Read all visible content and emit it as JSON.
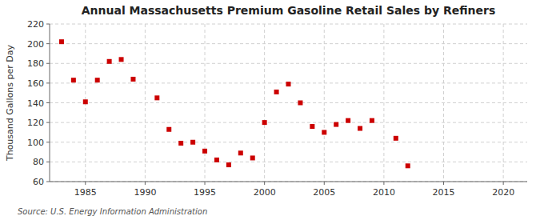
{
  "chart_data": {
    "type": "scatter",
    "title": "Annual Massachusetts Premium Gasoline Retail Sales by Refiners",
    "ylabel": "Thousand Gallons per Day",
    "source": "Source: U.S. Energy Information Administration",
    "x": [
      1983,
      1984,
      1985,
      1986,
      1987,
      1988,
      1989,
      1991,
      1992,
      1993,
      1994,
      1995,
      1996,
      1997,
      1998,
      1999,
      2000,
      2001,
      2002,
      2003,
      2004,
      2005,
      2006,
      2007,
      2008,
      2009,
      2011,
      2012
    ],
    "values": [
      202,
      163,
      141,
      163,
      182,
      184,
      164,
      145,
      113,
      99,
      100,
      91,
      82,
      77,
      89,
      84,
      120,
      151,
      159,
      140,
      116,
      110,
      118,
      122,
      114,
      122,
      104,
      76
    ],
    "color": "#cc0000",
    "marker": "square",
    "xlim": [
      1982,
      2022
    ],
    "ylim": [
      60,
      220
    ],
    "xticks": [
      1985,
      1990,
      1995,
      2000,
      2005,
      2010,
      2015,
      2020
    ],
    "yticks": [
      60,
      80,
      100,
      120,
      140,
      160,
      180,
      200,
      220
    ],
    "grid": true
  }
}
